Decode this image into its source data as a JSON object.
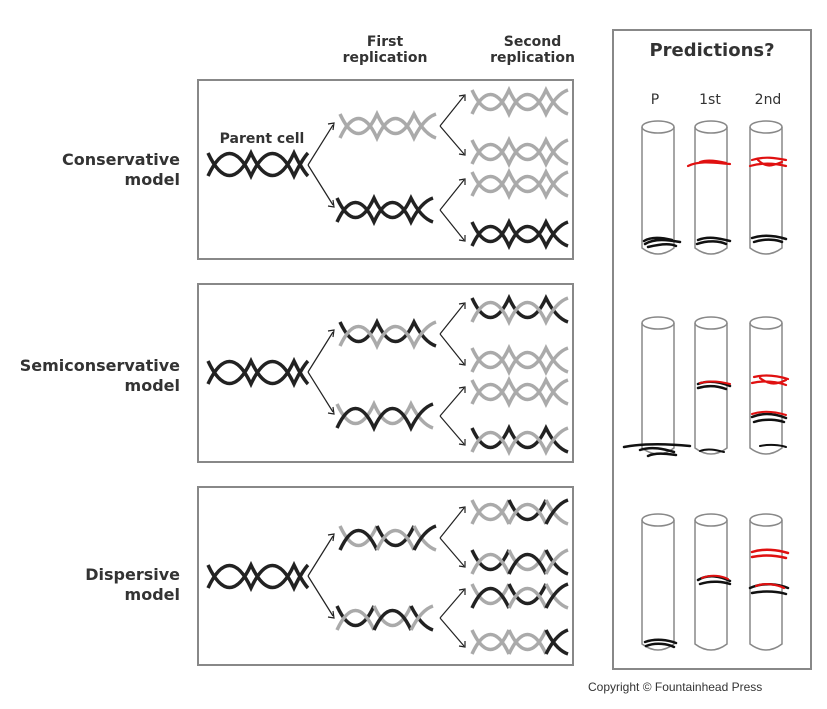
{
  "header": {
    "first_replication": "First\nreplication",
    "second_replication": "Second\nreplication"
  },
  "models": [
    {
      "label": "Conservative\nmodel",
      "parent_label": "Parent cell"
    },
    {
      "label": "Semiconservative\nmodel"
    },
    {
      "label": "Dispersive\nmodel"
    }
  ],
  "predictions": {
    "title": "Predictions?",
    "columns": [
      "P",
      "1st",
      "2nd"
    ]
  },
  "copyright": "Copyright © Fountainhead Press",
  "colors": {
    "dark_strand": "#222222",
    "light_strand": "#aaaaaa",
    "mark_red": "#e01010",
    "mark_black": "#111111",
    "border": "#888888"
  }
}
